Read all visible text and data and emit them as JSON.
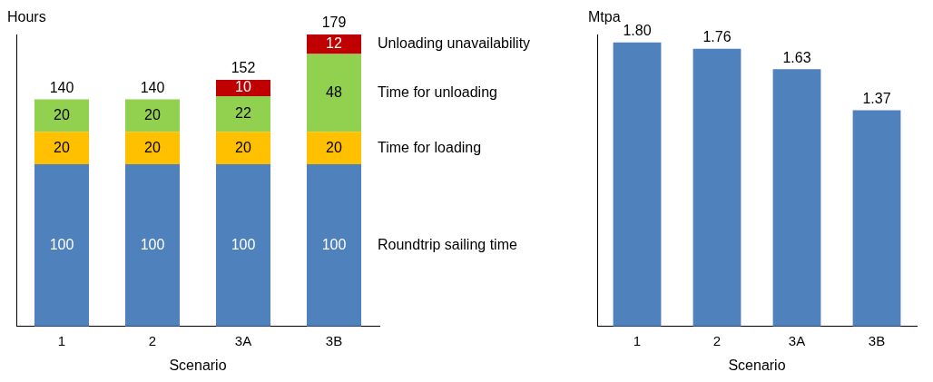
{
  "chart_data": [
    {
      "type": "bar",
      "stacked": true,
      "ylabel": "Hours",
      "xlabel": "Scenario",
      "categories": [
        "1",
        "2",
        "3A",
        "3B"
      ],
      "ylim": [
        0,
        180
      ],
      "tick_labels": "x",
      "grid": false,
      "legend": "right",
      "data_labels": true,
      "totals": [
        "140",
        "140",
        "152",
        "179"
      ],
      "series": [
        {
          "name": "Roundtrip sailing time",
          "color": "#4f81bd",
          "values": [
            100,
            100,
            100,
            100
          ]
        },
        {
          "name": "Time for loading",
          "color": "#ffc000",
          "values": [
            20,
            20,
            20,
            20
          ]
        },
        {
          "name": "Time for unloading",
          "color": "#92d050",
          "values": [
            20,
            20,
            22,
            48
          ]
        },
        {
          "name": "Unloading unavailability",
          "color": "#c00000",
          "values": [
            null,
            null,
            10,
            12
          ]
        }
      ]
    },
    {
      "type": "bar",
      "ylabel": "Mtpa",
      "xlabel": "Scenario",
      "categories": [
        "1",
        "2",
        "3A",
        "3B"
      ],
      "ylim": [
        0,
        1.85
      ],
      "tick_labels": "x",
      "grid": false,
      "legend": false,
      "series": [
        {
          "color": "#4f81bd",
          "values": [
            1.8,
            1.76,
            1.63,
            1.37
          ],
          "value_labels": [
            "1.80",
            "1.76",
            "1.63",
            "1.37"
          ]
        }
      ]
    }
  ]
}
